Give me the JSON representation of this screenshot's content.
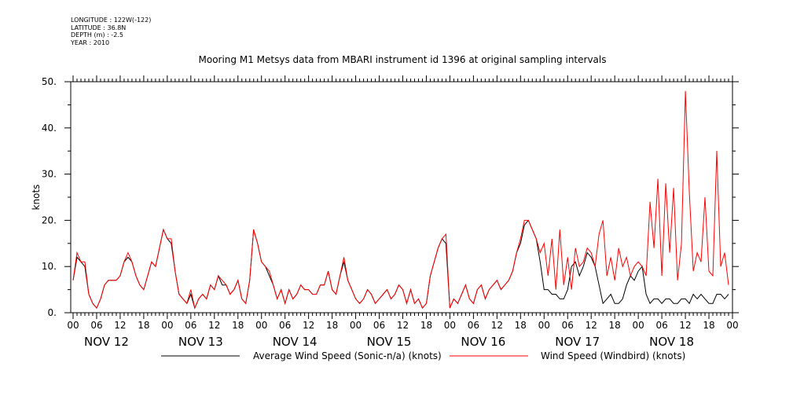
{
  "metadata": [
    "LONGITUDE : 122W(-122)",
    "LATITUDE : 36.8N",
    "DEPTH (m) : -2.5",
    "YEAR : 2010"
  ],
  "chart_data": {
    "type": "line",
    "title": "Mooring M1 Metsys data from MBARI instrument id 1396 at original sampling intervals",
    "xlabel": "",
    "ylabel": "knots",
    "ylim": [
      0,
      50
    ],
    "yticks": [
      0,
      10,
      20,
      30,
      40,
      50
    ],
    "ytick_labels": [
      "0.",
      "10.",
      "20.",
      "30.",
      "40.",
      "50."
    ],
    "xlim_hours": [
      0,
      168
    ],
    "xtick_hours": [
      0,
      6,
      12,
      18,
      24,
      30,
      36,
      42,
      48,
      54,
      60,
      66,
      72,
      78,
      84,
      90,
      96,
      102,
      108,
      114,
      120,
      126,
      132,
      138,
      144,
      150,
      156,
      162,
      168
    ],
    "xtick_labels": [
      "00",
      "06",
      "12",
      "18",
      "00",
      "06",
      "12",
      "18",
      "00",
      "06",
      "12",
      "18",
      "00",
      "06",
      "12",
      "18",
      "00",
      "06",
      "12",
      "18",
      "00",
      "06",
      "12",
      "18",
      "00",
      "06",
      "12",
      "18",
      "00"
    ],
    "day_labels": [
      "NOV 12",
      "NOV 13",
      "NOV 14",
      "NOV 15",
      "NOV 16",
      "NOV 17",
      "NOV 18"
    ],
    "grid": false,
    "legend_position": "bottom",
    "series": [
      {
        "name": "Average Wind Speed (Sonic-n/a) (knots)",
        "color": "#000000",
        "x": [
          0,
          1,
          2,
          3,
          4,
          5,
          6,
          7,
          8,
          9,
          10,
          11,
          12,
          13,
          14,
          15,
          16,
          17,
          18,
          19,
          20,
          21,
          22,
          23,
          24,
          25,
          26,
          27,
          28,
          29,
          30,
          31,
          32,
          33,
          34,
          35,
          36,
          37,
          38,
          39,
          40,
          41,
          42,
          43,
          44,
          45,
          46,
          47,
          48,
          49,
          50,
          51,
          52,
          53,
          54,
          55,
          56,
          57,
          58,
          59,
          60,
          61,
          62,
          63,
          64,
          65,
          66,
          67,
          68,
          69,
          70,
          71,
          72,
          73,
          74,
          75,
          76,
          77,
          78,
          79,
          80,
          81,
          82,
          83,
          84,
          85,
          86,
          87,
          88,
          89,
          90,
          91,
          92,
          93,
          94,
          95,
          96,
          97,
          98,
          99,
          100,
          101,
          102,
          103,
          104,
          105,
          106,
          107,
          108,
          109,
          110,
          111,
          112,
          113,
          114,
          115,
          116,
          117,
          118,
          119,
          120,
          121,
          122,
          123,
          124,
          125,
          126,
          127,
          128,
          129,
          130,
          131,
          132,
          133,
          134,
          135,
          136,
          137,
          138,
          139,
          140,
          141,
          142,
          143,
          144,
          145,
          146,
          147,
          148,
          149,
          150,
          151,
          152,
          153,
          154,
          155,
          156,
          157,
          158,
          159,
          160,
          161,
          162,
          163,
          164,
          165,
          166,
          167
        ],
        "values": [
          7,
          12,
          11,
          10,
          4,
          2,
          1,
          3,
          6,
          7,
          7,
          7,
          8,
          11,
          12,
          11,
          8,
          6,
          5,
          8,
          11,
          10,
          14,
          18,
          16,
          15,
          9,
          4,
          3,
          2,
          4,
          1,
          3,
          4,
          3,
          6,
          5,
          8,
          6,
          6,
          4,
          5,
          7,
          3,
          2,
          7,
          18,
          15,
          11,
          10,
          8,
          6,
          3,
          5,
          2,
          5,
          3,
          4,
          6,
          5,
          5,
          4,
          4,
          6,
          6,
          9,
          5,
          4,
          8,
          11,
          7,
          5,
          3,
          2,
          3,
          5,
          4,
          2,
          3,
          4,
          5,
          3,
          4,
          6,
          5,
          2,
          5,
          2,
          3,
          1,
          2,
          8,
          11,
          14,
          16,
          15,
          1,
          3,
          2,
          4,
          6,
          3,
          2,
          5,
          6,
          3,
          5,
          6,
          7,
          5,
          6,
          7,
          9,
          13,
          15,
          19,
          20,
          18,
          16,
          11,
          5,
          5,
          4,
          4,
          3,
          3,
          5,
          10,
          11,
          8,
          10,
          13,
          12,
          10,
          6,
          2,
          3,
          4,
          2,
          2,
          3,
          6,
          8,
          7,
          9,
          10,
          4,
          2,
          3,
          3,
          2,
          3,
          3,
          2,
          2,
          3,
          3,
          2,
          4,
          3,
          4,
          3,
          2,
          2,
          4,
          4,
          3,
          4
        ]
      },
      {
        "name": "Wind Speed (Windbird) (knots)",
        "color": "#ff0000",
        "x": [
          0,
          1,
          2,
          3,
          4,
          5,
          6,
          7,
          8,
          9,
          10,
          11,
          12,
          13,
          14,
          15,
          16,
          17,
          18,
          19,
          20,
          21,
          22,
          23,
          24,
          25,
          26,
          27,
          28,
          29,
          30,
          31,
          32,
          33,
          34,
          35,
          36,
          37,
          38,
          39,
          40,
          41,
          42,
          43,
          44,
          45,
          46,
          47,
          48,
          49,
          50,
          51,
          52,
          53,
          54,
          55,
          56,
          57,
          58,
          59,
          60,
          61,
          62,
          63,
          64,
          65,
          66,
          67,
          68,
          69,
          70,
          71,
          72,
          73,
          74,
          75,
          76,
          77,
          78,
          79,
          80,
          81,
          82,
          83,
          84,
          85,
          86,
          87,
          88,
          89,
          90,
          91,
          92,
          93,
          94,
          95,
          96,
          97,
          98,
          99,
          100,
          101,
          102,
          103,
          104,
          105,
          106,
          107,
          108,
          109,
          110,
          111,
          112,
          113,
          114,
          115,
          116,
          117,
          118,
          119,
          120,
          121,
          122,
          123,
          124,
          125,
          126,
          127,
          128,
          129,
          130,
          131,
          132,
          133,
          134,
          135,
          136,
          137,
          138,
          139,
          140,
          141,
          142,
          143,
          144,
          145,
          146,
          147,
          148,
          149,
          150,
          151,
          152,
          153,
          154,
          155,
          156,
          157,
          158,
          159,
          160,
          161,
          162,
          163,
          164,
          165,
          166,
          167
        ],
        "values": [
          7,
          13,
          11,
          11,
          4,
          2,
          1,
          3,
          6,
          7,
          7,
          7,
          8,
          11,
          13,
          11,
          8,
          6,
          5,
          8,
          11,
          10,
          14,
          18,
          16,
          16,
          9,
          4,
          3,
          2,
          5,
          1,
          3,
          4,
          3,
          6,
          5,
          8,
          7,
          6,
          4,
          5,
          7,
          3,
          2,
          7,
          18,
          15,
          11,
          10,
          9,
          6,
          3,
          5,
          2,
          5,
          3,
          4,
          6,
          5,
          5,
          4,
          4,
          6,
          6,
          9,
          5,
          4,
          8,
          12,
          7,
          5,
          3,
          2,
          3,
          5,
          4,
          2,
          3,
          4,
          5,
          3,
          4,
          6,
          5,
          2,
          5,
          2,
          3,
          1,
          2,
          8,
          11,
          14,
          16,
          17,
          1,
          3,
          2,
          4,
          6,
          3,
          2,
          5,
          6,
          3,
          5,
          6,
          7,
          5,
          6,
          7,
          9,
          13,
          16,
          20,
          20,
          18,
          16,
          13,
          15,
          8,
          16,
          5,
          18,
          6,
          12,
          5,
          14,
          10,
          11,
          14,
          13,
          10,
          17,
          20,
          8,
          12,
          7,
          14,
          10,
          12,
          8,
          10,
          11,
          10,
          8,
          24,
          14,
          29,
          8,
          28,
          13,
          27,
          7,
          15,
          48,
          26,
          9,
          13,
          11,
          25,
          9,
          8,
          35,
          10,
          13,
          6
        ]
      }
    ]
  }
}
